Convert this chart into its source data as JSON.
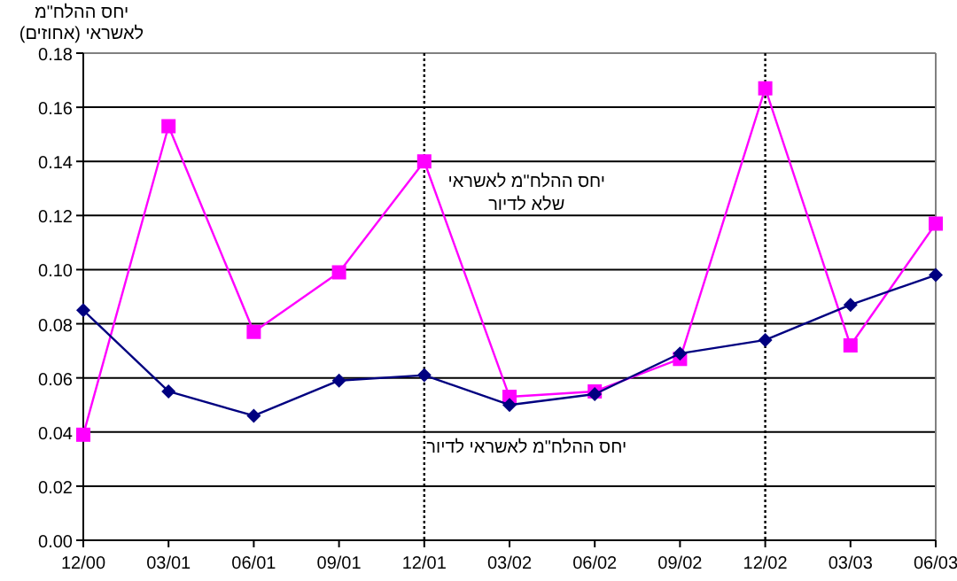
{
  "chart_data": {
    "type": "line",
    "ylabel": "יחס ההלח\"מ לאשראי (אחוזים)",
    "categories": [
      "12/00",
      "03/01",
      "06/01",
      "09/01",
      "12/01",
      "03/02",
      "06/02",
      "09/02",
      "12/02",
      "03/03",
      "06/03"
    ],
    "series": [
      {
        "name": "יחס ההלח\"מ לאשראי לדיור",
        "color": "#000080",
        "marker": "diamond",
        "values": [
          0.085,
          0.055,
          0.046,
          0.059,
          0.061,
          0.05,
          0.054,
          0.069,
          0.074,
          0.087,
          0.098
        ]
      },
      {
        "name": "יחס ההלח\"מ לאשראי שלא לדיור",
        "color": "#ff00ff",
        "marker": "square",
        "values": [
          0.039,
          0.153,
          0.077,
          0.099,
          0.14,
          0.053,
          0.055,
          0.067,
          0.167,
          0.072,
          0.117
        ]
      }
    ],
    "ylim": [
      0,
      0.18
    ],
    "yticks": [
      {
        "value": 0,
        "label": "0.00"
      },
      {
        "value": 0.02,
        "label": "0.02"
      },
      {
        "value": 0.04,
        "label": "0.04"
      },
      {
        "value": 0.06,
        "label": "0.06"
      },
      {
        "value": 0.08,
        "label": "0.08"
      },
      {
        "value": 0.1,
        "label": "0.10"
      },
      {
        "value": 0.12,
        "label": "0.12"
      },
      {
        "value": 0.14,
        "label": "0.14"
      },
      {
        "value": 0.16,
        "label": "0.16"
      },
      {
        "value": 0.18,
        "label": "0.18"
      }
    ],
    "grid": "y",
    "legend": false,
    "ref_lines": [
      {
        "axis": "x",
        "value": "12/01",
        "color": "#000000",
        "line_style": "dotted"
      },
      {
        "axis": "x",
        "value": "12/02",
        "color": "#000000",
        "line_style": "dotted"
      }
    ]
  }
}
